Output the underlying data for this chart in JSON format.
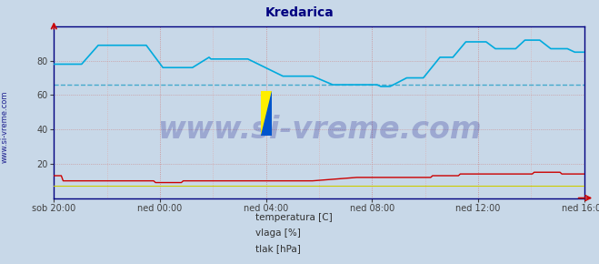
{
  "title": "Kredarica",
  "title_color": "#000080",
  "title_fontsize": 10,
  "background_color": "#c8d8e8",
  "plot_bg_color": "#c8d8e8",
  "ylim": [
    0,
    100
  ],
  "yticks": [
    20,
    40,
    60,
    80
  ],
  "grid_color_major": "#cc8888",
  "grid_color_minor": "#ddaaaa",
  "hline_value": 66,
  "hline_color": "#44aacc",
  "xlabel_ticks": [
    "sob 20:00",
    "ned 00:00",
    "ned 04:00",
    "ned 08:00",
    "ned 12:00",
    "ned 16:00"
  ],
  "tick_color": "#404040",
  "tick_fontsize": 7,
  "spine_color": "#000080",
  "watermark": "www.si-vreme.com",
  "watermark_color": "#000080",
  "watermark_fontsize": 24,
  "side_label": "www.si-vreme.com",
  "side_label_color": "#000080",
  "side_label_fontsize": 6,
  "legend_items": [
    {
      "label": "temperatura [C]",
      "color": "#cc0000"
    },
    {
      "label": "vlaga [%]",
      "color": "#00aadd"
    },
    {
      "label": "tlak [hPa]",
      "color": "#cccc00"
    }
  ],
  "vlaga_color": "#00aadd",
  "temperatura_color": "#cc0000",
  "tlak_color": "#cccc00",
  "arrow_color": "#cc0000"
}
